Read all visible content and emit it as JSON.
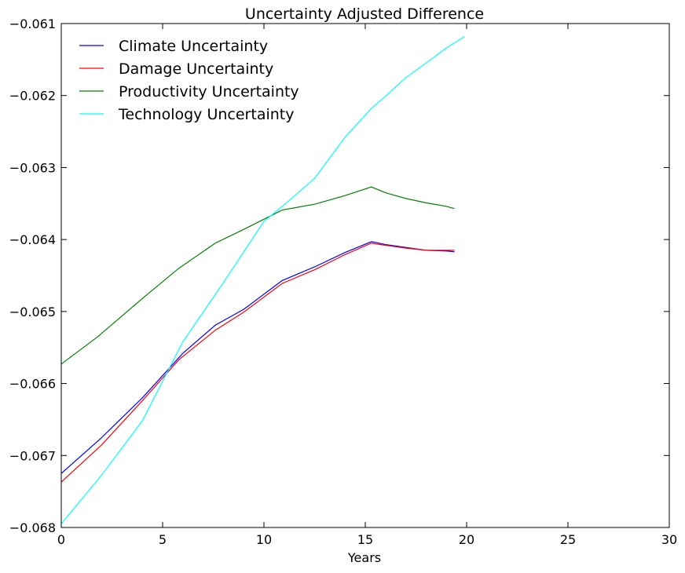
{
  "chart_data": {
    "type": "line",
    "title": "Uncertainty Adjusted Difference",
    "xlabel": "Years",
    "ylabel": "",
    "xlim": [
      0,
      30
    ],
    "ylim": [
      -0.068,
      -0.061
    ],
    "xticks": [
      0,
      5,
      10,
      15,
      20,
      25,
      30
    ],
    "yticks": [
      -0.068,
      -0.067,
      -0.066,
      -0.065,
      -0.064,
      -0.063,
      -0.062,
      -0.061
    ],
    "xtick_labels": [
      "0",
      "5",
      "10",
      "15",
      "20",
      "25",
      "30"
    ],
    "ytick_labels": [
      "−0.068",
      "−0.067",
      "−0.066",
      "−0.065",
      "−0.064",
      "−0.063",
      "−0.062",
      "−0.061"
    ],
    "grid": false,
    "legend_position": "upper-left",
    "series": [
      {
        "name": "Climate Uncertainty",
        "color": "#0000ff",
        "x": [
          0,
          2,
          4,
          6,
          7.6,
          9,
          10.9,
          12.5,
          14,
          15.3,
          15.5,
          16,
          17,
          18,
          19,
          19.4
        ],
        "y": [
          -0.06725,
          -0.06675,
          -0.0662,
          -0.06558,
          -0.06519,
          -0.06497,
          -0.06457,
          -0.06438,
          -0.06418,
          -0.06403,
          -0.06404,
          -0.06407,
          -0.06411,
          -0.06415,
          -0.06416,
          -0.06417
        ]
      },
      {
        "name": "Damage Uncertainty",
        "color": "#ff0000",
        "x": [
          0,
          2,
          4,
          5.8,
          7.6,
          9,
          10.9,
          12.5,
          14,
          15.3,
          15.5,
          16,
          17,
          18,
          19,
          19.4
        ],
        "y": [
          -0.06737,
          -0.06685,
          -0.06624,
          -0.06567,
          -0.06526,
          -0.06501,
          -0.06461,
          -0.06442,
          -0.06421,
          -0.06405,
          -0.06406,
          -0.06408,
          -0.06412,
          -0.06415,
          -0.06415,
          -0.06415
        ]
      },
      {
        "name": "Productivity Uncertainty",
        "color": "#008000",
        "x": [
          0,
          1.8,
          4,
          5.8,
          7.6,
          9,
          10.9,
          12.5,
          14,
          15.3,
          16,
          17,
          18,
          19,
          19.4
        ],
        "y": [
          -0.06573,
          -0.06535,
          -0.06482,
          -0.0644,
          -0.06405,
          -0.06386,
          -0.06359,
          -0.06351,
          -0.06339,
          -0.06327,
          -0.06335,
          -0.06343,
          -0.06349,
          -0.06354,
          -0.06357
        ]
      },
      {
        "name": "Technology Uncertainty",
        "color": "#00ffff",
        "x": [
          0,
          2,
          4,
          6,
          8,
          10,
          11.2,
          12.5,
          14,
          15.3,
          16,
          17,
          18,
          19,
          19.9
        ],
        "y": [
          -0.06795,
          -0.06727,
          -0.06652,
          -0.06542,
          -0.0646,
          -0.06375,
          -0.06347,
          -0.06315,
          -0.06258,
          -0.06218,
          -0.06201,
          -0.06175,
          -0.06155,
          -0.06134,
          -0.06118
        ]
      }
    ]
  }
}
